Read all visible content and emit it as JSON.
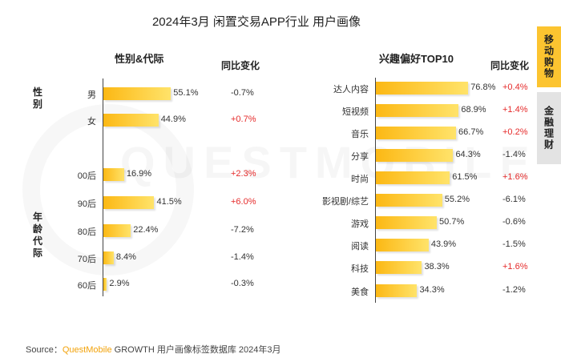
{
  "title": "2024年3月 闲置交易APP行业 用户画像",
  "watermark": "QUESTMOBILE",
  "side_tabs": {
    "active": "移动购物",
    "inactive": "金融理财"
  },
  "source": {
    "prefix": "Source：",
    "brand": "QuestMobile",
    "rest": " GROWTH 用户画像标签数据库 2024年3月"
  },
  "chart_data": [
    {
      "type": "bar",
      "title": "性别&代际",
      "yoy_header": "同比变化",
      "groups": [
        {
          "label": "性别",
          "categories": [
            "男",
            "女"
          ]
        },
        {
          "label": "年龄代际",
          "categories": [
            "00后",
            "90后",
            "80后",
            "70后",
            "60后"
          ]
        }
      ],
      "categories": [
        "男",
        "女",
        "00后",
        "90后",
        "80后",
        "70后",
        "60后"
      ],
      "values": [
        55.1,
        44.9,
        16.9,
        41.5,
        22.4,
        8.4,
        2.9
      ],
      "value_labels": [
        "55.1%",
        "44.9%",
        "16.9%",
        "41.5%",
        "22.4%",
        "8.4%",
        "2.9%"
      ],
      "yoy": [
        "-0.7%",
        "+0.7%",
        "+2.3%",
        "+6.0%",
        "-7.2%",
        "-1.4%",
        "-0.3%"
      ],
      "unit": "%",
      "colors": {
        "bar_start": "#fcb814",
        "bar_end": "#ffe36a",
        "up": "#e52b2b",
        "down": "#333333"
      }
    },
    {
      "type": "bar",
      "title": "兴趣偏好TOP10",
      "yoy_header": "同比变化",
      "categories": [
        "达人内容",
        "短视频",
        "音乐",
        "分享",
        "时尚",
        "影视剧/综艺",
        "游戏",
        "阅读",
        "科技",
        "美食"
      ],
      "values": [
        76.8,
        68.9,
        66.7,
        64.3,
        61.5,
        55.2,
        50.7,
        43.9,
        38.3,
        34.3
      ],
      "value_labels": [
        "76.8%",
        "68.9%",
        "66.7%",
        "64.3%",
        "61.5%",
        "55.2%",
        "50.7%",
        "43.9%",
        "38.3%",
        "34.3%"
      ],
      "yoy": [
        "+0.4%",
        "+1.4%",
        "+0.2%",
        "-1.4%",
        "+1.6%",
        "-6.1%",
        "-0.6%",
        "-1.5%",
        "+1.6%",
        "-1.2%"
      ],
      "unit": "%",
      "colors": {
        "bar_start": "#fcb814",
        "bar_end": "#ffe36a",
        "up": "#e52b2b",
        "down": "#333333"
      }
    }
  ]
}
